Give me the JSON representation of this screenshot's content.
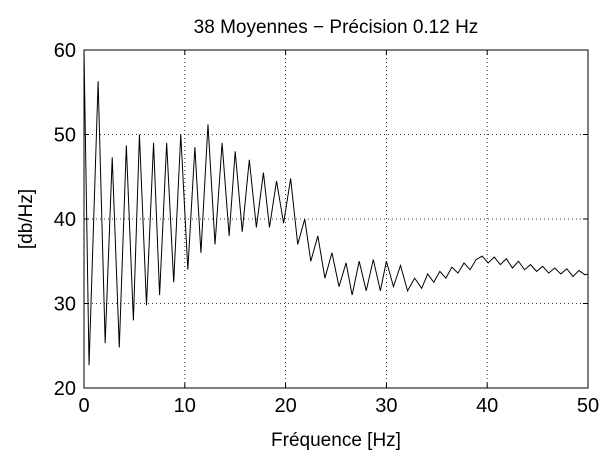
{
  "chart_data": {
    "type": "line",
    "title": "38 Moyennes − Précision 0.12 Hz",
    "x_label": "Fréquence [Hz]",
    "y_label": "[db/Hz]",
    "x": [
      0,
      0.5,
      1.4,
      2.1,
      2.8,
      3.5,
      4.2,
      4.9,
      5.5,
      6.2,
      6.9,
      7.5,
      8.2,
      8.9,
      9.6,
      10.3,
      11,
      11.6,
      12.3,
      13,
      13.7,
      14.4,
      15,
      15.7,
      16.4,
      17.1,
      17.8,
      18.4,
      19.1,
      19.8,
      20.5,
      21.2,
      21.9,
      22.5,
      23.2,
      23.9,
      24.6,
      25.3,
      26,
      26.6,
      27.3,
      28,
      28.7,
      29.4,
      30,
      30.7,
      31.4,
      32.1,
      32.8,
      33.5,
      34.1,
      34.7,
      35.3,
      35.9,
      36.5,
      37.1,
      37.7,
      38.3,
      38.9,
      39.5,
      40.1,
      40.7,
      41.3,
      41.9,
      42.5,
      43.1,
      43.7,
      44.3,
      44.9,
      45.5,
      46.1,
      46.7,
      47.3,
      47.9,
      48.5,
      49.1,
      49.7,
      50
    ],
    "series": [
      {
        "color": "#000000",
        "values": [
          60,
          22.7,
          56.3,
          25.3,
          47.3,
          24.8,
          48.7,
          28,
          50,
          29.8,
          49,
          31,
          49,
          32.5,
          50,
          34,
          48.5,
          36,
          51.2,
          37,
          49,
          38,
          48,
          38.5,
          47,
          39,
          45.5,
          39,
          44.5,
          39.5,
          44.8,
          37,
          40,
          35,
          38,
          33,
          36,
          32,
          34.8,
          31,
          35,
          31.5,
          35.2,
          31.5,
          35,
          32,
          34.5,
          31.5,
          33,
          31.8,
          33.5,
          32.5,
          33.8,
          33,
          34.3,
          33.6,
          34.8,
          34,
          35.2,
          35.6,
          34.8,
          35.5,
          34.6,
          35.3,
          34.2,
          35,
          34,
          34.6,
          33.8,
          34.4,
          33.6,
          34.2,
          33.5,
          34.1,
          33.2,
          33.9,
          33.4,
          33.5
        ]
      }
    ],
    "xlim": [
      0,
      50
    ],
    "xticks": [
      0,
      10,
      20,
      30,
      40,
      50
    ],
    "ylim": [
      20,
      60
    ],
    "yticks": [
      20,
      30,
      40,
      50,
      60
    ],
    "grid": true
  }
}
